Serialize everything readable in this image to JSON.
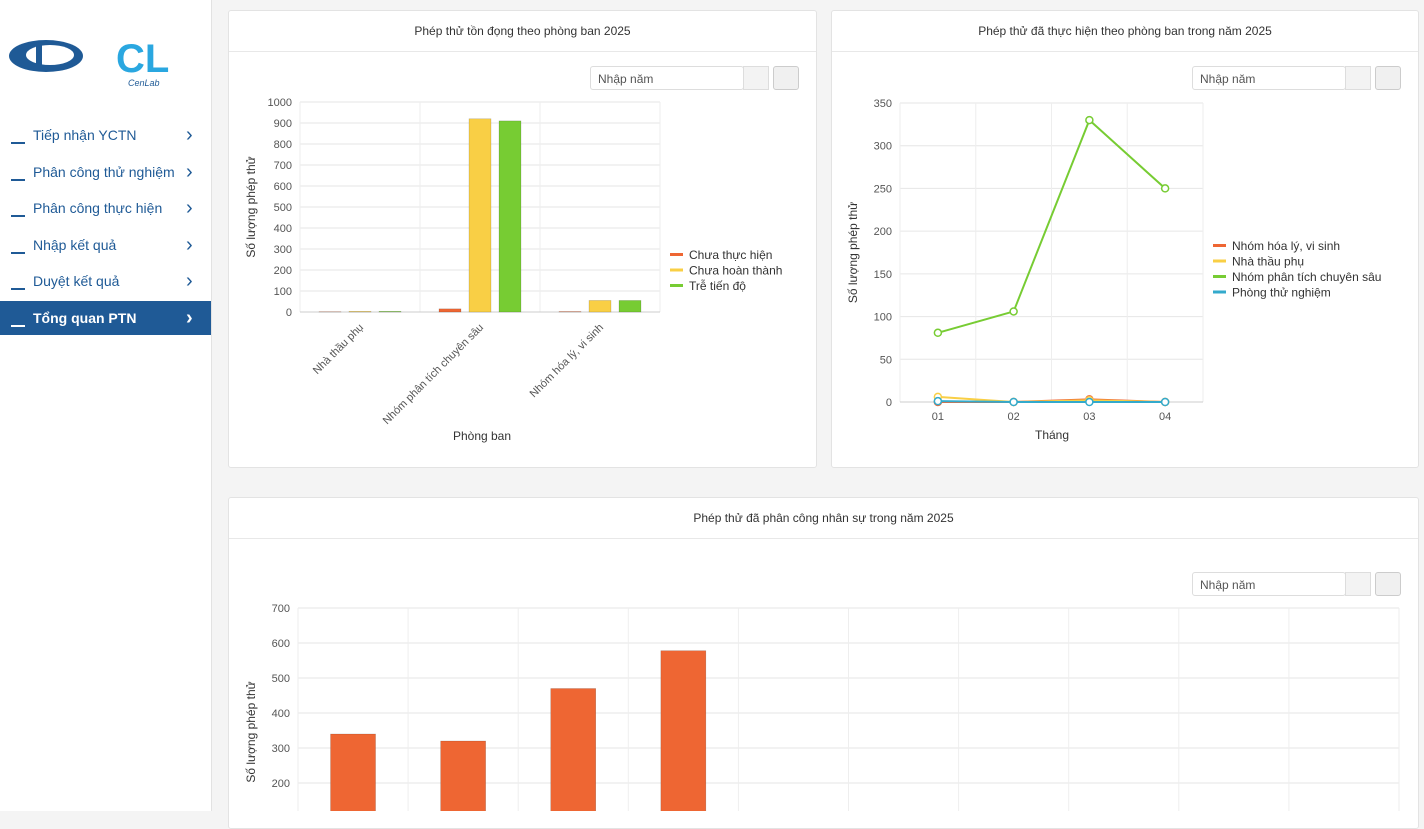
{
  "sidebar": {
    "logo_mark": "CL",
    "logo_text": "CenLab",
    "menu": [
      "Tiếp nhận YCTN",
      "Phân công thử nghiệm",
      "Phân công thực hiện",
      "Nhập kết quả",
      "Duyệt kết quả",
      "Tổng quan PTN"
    ],
    "active": 5
  },
  "filters": [
    "Nhập năm",
    "Nhập năm",
    "Nhập năm"
  ],
  "chart_data": [
    {
      "type": "bar",
      "title": "Phép thử tồn đọng theo phòng ban 2025",
      "categories": [
        "Nhà thầu phụ",
        "Nhóm phân tích chuyên sâu",
        "Nhóm hóa lý, vi sinh"
      ],
      "series": [
        {
          "name": "Chưa thực hiện",
          "color": "#ee6633",
          "values": [
            1,
            15,
            2
          ]
        },
        {
          "name": "Chưa hoàn thành",
          "color": "#f9cf45",
          "values": [
            3,
            920,
            55
          ]
        },
        {
          "name": "Trễ tiến độ",
          "color": "#77cc33",
          "values": [
            3,
            910,
            55
          ]
        }
      ],
      "ylim": [
        0,
        1000
      ],
      "yticks": [
        0,
        100,
        200,
        300,
        400,
        500,
        600,
        700,
        800,
        900,
        1000
      ],
      "ylabel": "Số lượng phép thử",
      "xlabel": "Phòng ban",
      "grid": true,
      "legend": "right"
    },
    {
      "type": "line",
      "title": "Phép thử đã thực hiện theo phòng ban trong năm 2025",
      "categories": [
        "01",
        "02",
        "03",
        "04"
      ],
      "series": [
        {
          "name": "Nhóm hóa lý, vi sinh",
          "color": "#ee6633",
          "values": [
            0,
            0,
            3,
            0
          ]
        },
        {
          "name": "Nhà thầu phụ",
          "color": "#f9cf45",
          "values": [
            6,
            0,
            2,
            0
          ]
        },
        {
          "name": "Nhóm phân tích chuyên sâu",
          "color": "#77cc33",
          "values": [
            81,
            106,
            330,
            250
          ]
        },
        {
          "name": "Phòng thử nghiệm",
          "color": "#33aacc",
          "values": [
            1,
            0,
            0,
            0
          ]
        }
      ],
      "ylim": [
        0,
        350
      ],
      "yticks": [
        0,
        50,
        100,
        150,
        200,
        250,
        300,
        350
      ],
      "ylabel": "Số lượng phép thử",
      "xlabel": "Tháng",
      "grid": true,
      "legend": "right"
    },
    {
      "type": "bar",
      "title": "Phép thử đã phân công nhân sự trong năm 2025",
      "categories": [
        null,
        null,
        null,
        null,
        null,
        null,
        null,
        null,
        null,
        null
      ],
      "series": [
        {
          "color": "#ee6633",
          "values": [
            340,
            320,
            470,
            578,
            null,
            null,
            null,
            null,
            null,
            null
          ]
        }
      ],
      "ylim": [
        0,
        700
      ],
      "yticks": [
        200,
        300,
        400,
        500,
        600,
        700
      ],
      "ylabel": "Số lượng phép thử",
      "grid": true
    }
  ]
}
